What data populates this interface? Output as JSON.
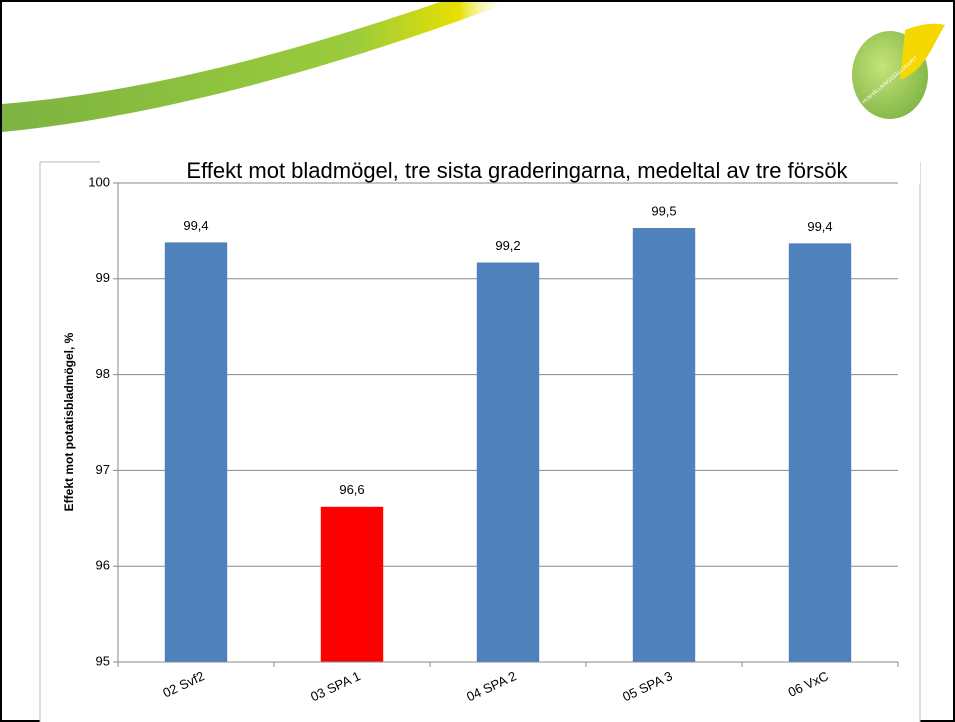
{
  "chart_data": {
    "type": "bar",
    "title": "Effekt mot bladmögel, tre sista graderingarna, medeltal av tre försök",
    "y_label": "Effekt mot potatisbladmögel, %",
    "logo_text": "HUSHÅLLNINGSSÄLLSKAPET",
    "categories": [
      "02 Svf2",
      "03 SPA 1",
      "04 SPA 2",
      "05 SPA 3",
      "06 VxC"
    ],
    "values": [
      99.38,
      96.62,
      99.17,
      99.53,
      99.37
    ],
    "value_labels": [
      "99,4",
      "96,6",
      "99,2",
      "99,5",
      "99,4"
    ],
    "colors": [
      "#4f81bd",
      "#ff0000",
      "#4f81bd",
      "#4f81bd",
      "#4f81bd"
    ],
    "ylim": [
      95,
      100
    ],
    "yticks": [
      95,
      96,
      97,
      98,
      99,
      100
    ],
    "grid": true
  }
}
